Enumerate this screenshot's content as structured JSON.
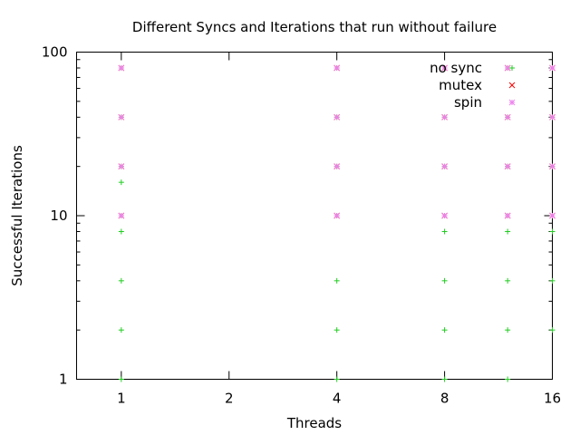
{
  "chart_data": {
    "type": "scatter",
    "title": "Different Syncs and Iterations that run without failure",
    "xlabel": "Threads",
    "ylabel": "Successful Iterations",
    "x_scale": "log2",
    "y_scale": "log10",
    "xlim": [
      0.75,
      16
    ],
    "ylim": [
      1,
      100
    ],
    "x_ticks": [
      {
        "value": 1,
        "label": "1"
      },
      {
        "value": 2,
        "label": "2"
      },
      {
        "value": 4,
        "label": "4"
      },
      {
        "value": 8,
        "label": "8"
      },
      {
        "value": 16,
        "label": "16"
      }
    ],
    "y_ticks": [
      {
        "value": 1,
        "label": "1"
      },
      {
        "value": 10,
        "label": "10"
      },
      {
        "value": 100,
        "label": "100"
      }
    ],
    "grid": false,
    "legend_position": "top-right",
    "series": [
      {
        "name": "no sync",
        "marker": "plus",
        "color": "#22cc22",
        "points": [
          [
            1,
            1
          ],
          [
            1,
            2
          ],
          [
            1,
            4
          ],
          [
            1,
            8
          ],
          [
            1,
            10
          ],
          [
            1,
            16
          ],
          [
            1,
            20
          ],
          [
            1,
            40
          ],
          [
            1,
            80
          ],
          [
            4,
            1
          ],
          [
            4,
            2
          ],
          [
            4,
            4
          ],
          [
            4,
            10
          ],
          [
            4,
            20
          ],
          [
            4,
            40
          ],
          [
            4,
            80
          ],
          [
            8,
            1
          ],
          [
            8,
            2
          ],
          [
            8,
            4
          ],
          [
            8,
            8
          ],
          [
            8,
            10
          ],
          [
            8,
            20
          ],
          [
            8,
            40
          ],
          [
            8,
            80
          ],
          [
            12,
            1
          ],
          [
            12,
            2
          ],
          [
            12,
            4
          ],
          [
            12,
            8
          ],
          [
            12,
            10
          ],
          [
            12,
            20
          ],
          [
            12,
            40
          ],
          [
            12,
            80
          ],
          [
            16,
            2
          ],
          [
            16,
            4
          ],
          [
            16,
            8
          ],
          [
            16,
            10
          ],
          [
            16,
            20
          ],
          [
            16,
            40
          ],
          [
            16,
            80
          ]
        ]
      },
      {
        "name": "mutex",
        "marker": "cross",
        "color": "#ff0000",
        "points": [
          [
            1,
            10
          ],
          [
            1,
            20
          ],
          [
            1,
            40
          ],
          [
            1,
            80
          ],
          [
            4,
            10
          ],
          [
            4,
            20
          ],
          [
            4,
            40
          ],
          [
            4,
            80
          ],
          [
            8,
            10
          ],
          [
            8,
            20
          ],
          [
            8,
            40
          ],
          [
            8,
            80
          ],
          [
            12,
            10
          ],
          [
            12,
            20
          ],
          [
            12,
            40
          ],
          [
            12,
            80
          ],
          [
            16,
            10
          ],
          [
            16,
            20
          ],
          [
            16,
            40
          ],
          [
            16,
            80
          ]
        ]
      },
      {
        "name": "spin",
        "marker": "star",
        "color": "#ee82ee",
        "points": [
          [
            1,
            10
          ],
          [
            1,
            20
          ],
          [
            1,
            40
          ],
          [
            1,
            80
          ],
          [
            4,
            10
          ],
          [
            4,
            20
          ],
          [
            4,
            40
          ],
          [
            4,
            80
          ],
          [
            8,
            10
          ],
          [
            8,
            20
          ],
          [
            8,
            40
          ],
          [
            8,
            80
          ],
          [
            12,
            10
          ],
          [
            12,
            20
          ],
          [
            12,
            40
          ],
          [
            12,
            80
          ],
          [
            16,
            10
          ],
          [
            16,
            20
          ],
          [
            16,
            40
          ],
          [
            16,
            80
          ]
        ]
      }
    ]
  }
}
